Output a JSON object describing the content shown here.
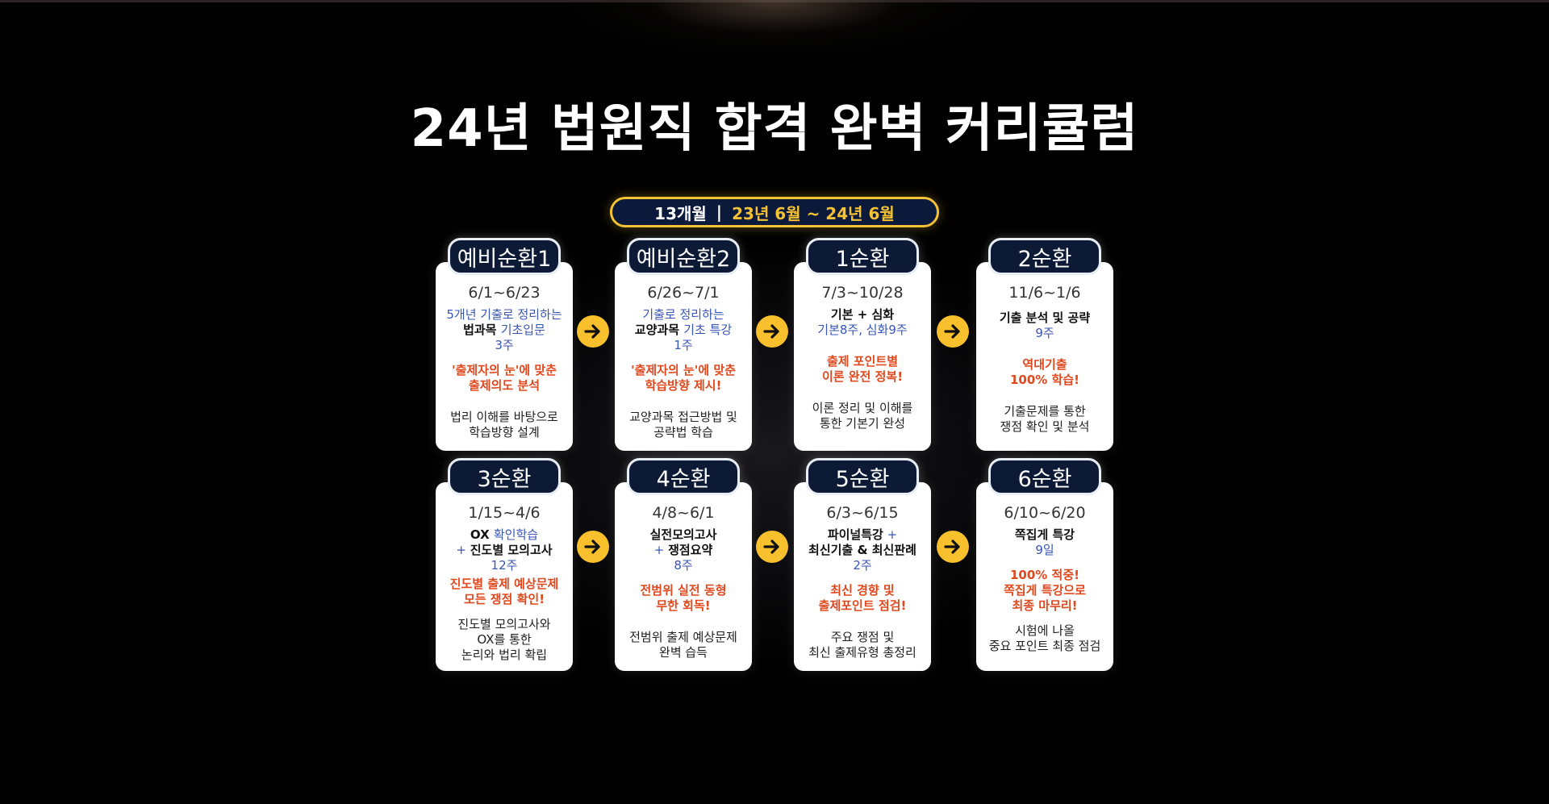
{
  "title": "24년 법원직 합격 완벽 커리큘럼",
  "period": {
    "months": "13개월",
    "separator": "|",
    "range": "23년 6월 ~ 24년 6월"
  },
  "cards": [
    {
      "name": "예비순환1",
      "date": "6/1~6/23",
      "l1": "5개년 기출로 정리하는",
      "l2a": "법과목 ",
      "l2b": "기초입문",
      "l3": "3주",
      "r1": "'출제자의 눈'에 맞춘",
      "r2": "출제의도 분석",
      "d1": "법리 이해를 바탕으로",
      "d2": "학습방향 설계"
    },
    {
      "name": "예비순환2",
      "date": "6/26~7/1",
      "l1": "기출로 정리하는",
      "l2a": "교양과목 ",
      "l2b": "기초 특강",
      "l3": "1주",
      "r1": "'출제자의 눈'에 맞춘",
      "r2": "학습방향 제시!",
      "d1": "교양과목 접근방법 및",
      "d2": "공략법 학습"
    },
    {
      "name": "1순환",
      "date": "7/3~10/28",
      "l1": "기본 + 심화",
      "l2": "기본8주, 심화9주",
      "r1": "출제 포인트별",
      "r2": "이론 완전 정복!",
      "d1": "이론 정리 및 이해를",
      "d2": "통한 기본기 완성"
    },
    {
      "name": "2순환",
      "date": "11/6~1/6",
      "l1": "기출 분석 및 공략",
      "l2": "9주",
      "r1": "역대기출",
      "r2": "100% 학습!",
      "d1": "기출문제를 통한",
      "d2": "쟁점 확인 및 분석"
    },
    {
      "name": "3순환",
      "date": "1/15~4/6",
      "l1a": "OX ",
      "l1b": "확인학습",
      "l2a": "+ ",
      "l2b": "진도별 모의고사",
      "l3": "12주",
      "r1": "진도별 출제 예상문제",
      "r2": "모든 쟁점 확인!",
      "d1": "진도별 모의고사와",
      "d2": "OX를 통한",
      "d3": "논리와 법리 확립"
    },
    {
      "name": "4순환",
      "date": "4/8~6/1",
      "l1": "실전모의고사",
      "l2a": "+ ",
      "l2b": "쟁점요약",
      "l3": "8주",
      "r1": "전범위 실전 동형",
      "r2": "무한 회독!",
      "d1": "전범위 출제 예상문제",
      "d2": "완벽 습득"
    },
    {
      "name": "5순환",
      "date": "6/3~6/15",
      "l1a": "파이널특강",
      "l1b": " +",
      "l2": "최신기출 & 최신판례",
      "l3": "2주",
      "r1": "최신 경향 및",
      "r2": "출제포인트 점검!",
      "d1": "주요 쟁점 및",
      "d2": "최신 출제유형 총정리"
    },
    {
      "name": "6순환",
      "date": "6/10~6/20",
      "l1": "쪽집게 특강",
      "l2": "9일",
      "r1": "100% 적중!",
      "r2": "쪽집게 특강으로",
      "r3": "최종 마무리!",
      "d1": "시험에 나올",
      "d2": "중요 포인트 최종 점검"
    }
  ]
}
